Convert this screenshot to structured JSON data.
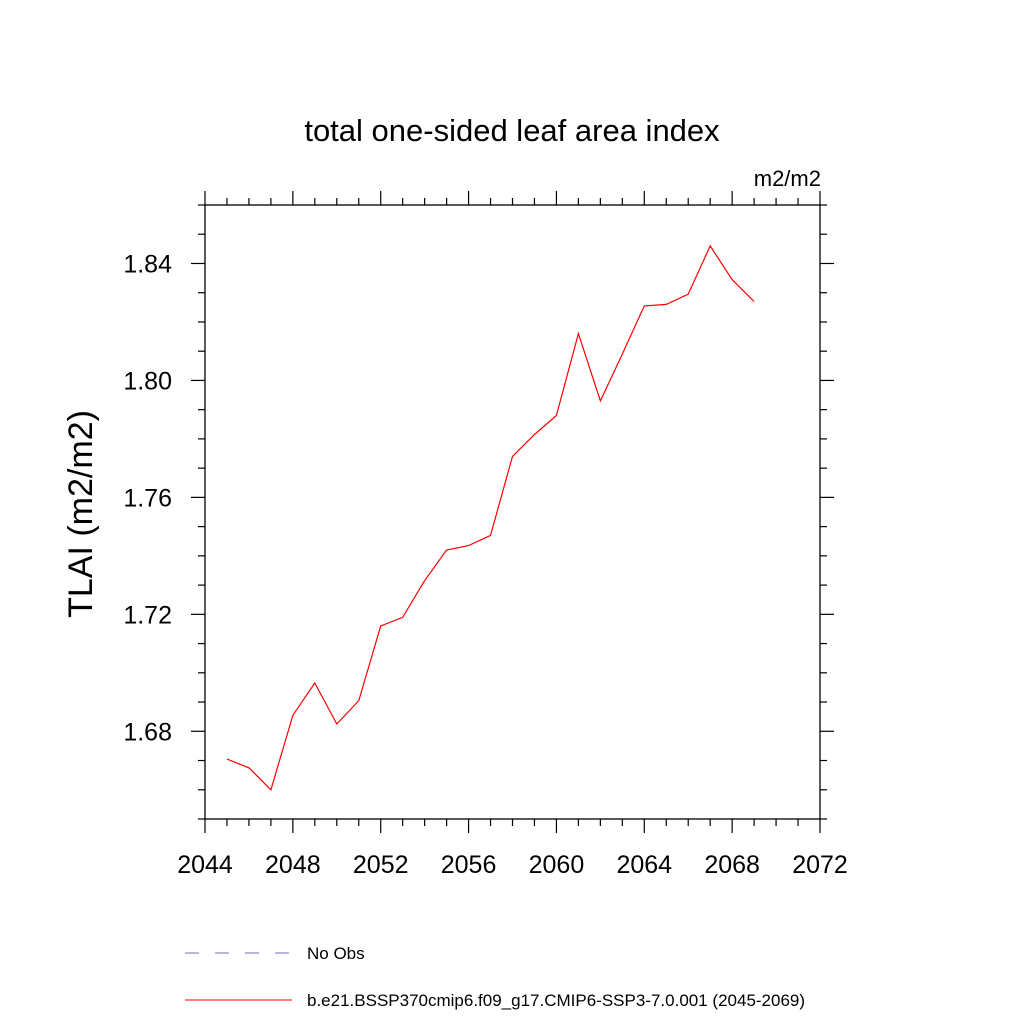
{
  "chart_data": {
    "type": "line",
    "title": "total one-sided leaf area index",
    "units": "m2/m2",
    "ylabel": "TLAI  (m2/m2)",
    "xlabel": "",
    "xlim": [
      2044,
      2072
    ],
    "ylim": [
      1.65,
      1.86
    ],
    "x_ticks": [
      2044,
      2048,
      2052,
      2056,
      2060,
      2064,
      2068,
      2072
    ],
    "x_tick_labels": [
      "2044",
      "2048",
      "2052",
      "2056",
      "2060",
      "2064",
      "2068",
      "2072"
    ],
    "y_ticks": [
      1.68,
      1.72,
      1.76,
      1.8,
      1.84
    ],
    "y_tick_labels": [
      "1.68",
      "1.72",
      "1.76",
      "1.80",
      "1.84"
    ],
    "grid": false,
    "legend_position": "bottom",
    "series": [
      {
        "name": "b.e21.BSSP370cmip6.f09_g17.CMIP6-SSP3-7.0.001 (2045-2069)",
        "color": "#ff0000",
        "dash": "solid",
        "x": [
          2045,
          2046,
          2047,
          2048,
          2049,
          2050,
          2051,
          2052,
          2053,
          2054,
          2055,
          2056,
          2057,
          2058,
          2059,
          2060,
          2061,
          2062,
          2063,
          2064,
          2065,
          2066,
          2067,
          2068,
          2069
        ],
        "values": [
          1.6705,
          1.6675,
          1.66,
          1.6855,
          1.6965,
          1.6825,
          1.6905,
          1.716,
          1.719,
          1.7315,
          1.742,
          1.7435,
          1.747,
          1.774,
          1.7815,
          1.788,
          1.816,
          1.793,
          1.809,
          1.8255,
          1.826,
          1.8295,
          1.846,
          1.8345,
          1.827
        ]
      }
    ],
    "legend": [
      {
        "label": "No Obs",
        "color": "#7b68c8",
        "dash": "dashed"
      },
      {
        "label": "b.e21.BSSP370cmip6.f09_g17.CMIP6-SSP3-7.0.001 (2045-2069)",
        "color": "#ff0000",
        "dash": "solid"
      }
    ]
  }
}
